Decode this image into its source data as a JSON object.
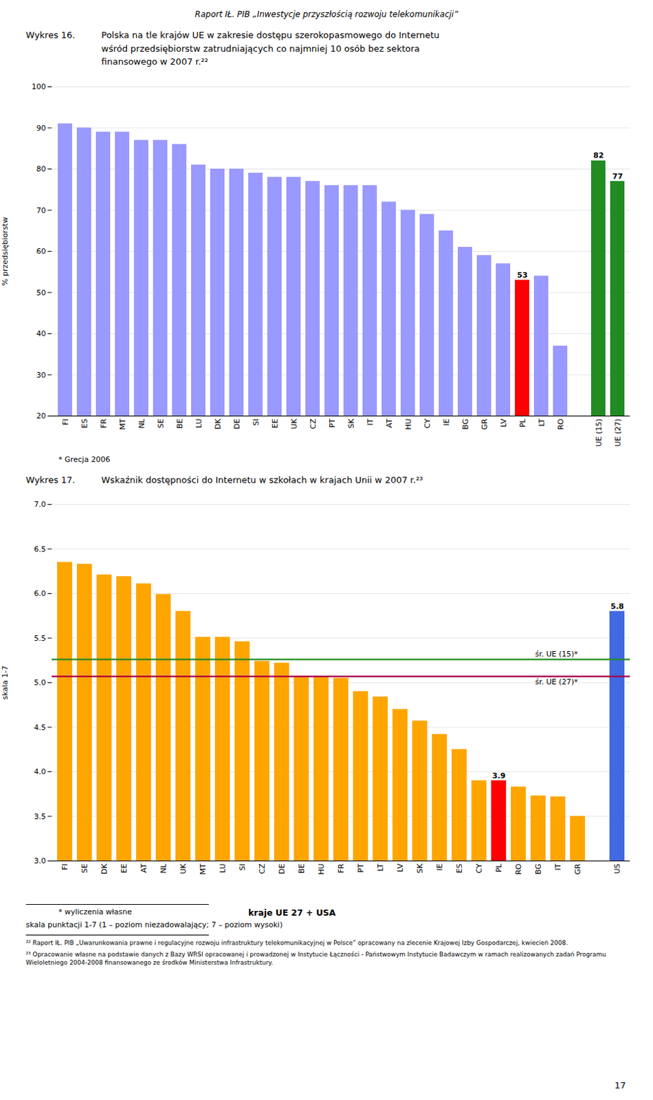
{
  "header": "Raport IŁ. PIB „Inwestycje przyszłością rozwoju telekomunikacji”",
  "chart_data": [
    {
      "type": "bar",
      "title_number": "Wykres 16.",
      "title": "Polska na tle krajów UE w zakresie dostępu szerokopasmowego do Internetu\nwśród przedsiębiorstw zatrudniających co najmniej 10 osób bez sektora\nfinansowego w 2007 r.²²",
      "ylabel": "% przedsiębiorstw",
      "categories": [
        "FI",
        "ES",
        "FR",
        "MT",
        "NL",
        "SE",
        "BE",
        "LU",
        "DK",
        "DE",
        "SI",
        "EE",
        "UK",
        "CZ",
        "PT",
        "SK",
        "IT",
        "AT",
        "HU",
        "CY",
        "IE",
        "BG",
        "GR",
        "LV",
        "PL",
        "LT",
        "RO",
        "UE (15)",
        "UE (27)"
      ],
      "values": [
        91,
        90,
        89,
        89,
        87,
        87,
        86,
        81,
        80,
        80,
        79,
        78,
        78,
        77,
        76,
        76,
        76,
        72,
        70,
        69,
        65,
        61,
        59,
        57,
        53,
        54,
        37,
        82,
        77
      ],
      "colors": [
        "#9999FF",
        "#9999FF",
        "#9999FF",
        "#9999FF",
        "#9999FF",
        "#9999FF",
        "#9999FF",
        "#9999FF",
        "#9999FF",
        "#9999FF",
        "#9999FF",
        "#9999FF",
        "#9999FF",
        "#9999FF",
        "#9999FF",
        "#9999FF",
        "#9999FF",
        "#9999FF",
        "#9999FF",
        "#9999FF",
        "#9999FF",
        "#9999FF",
        "#9999FF",
        "#9999FF",
        "#FF0000",
        "#9999FF",
        "#9999FF",
        "#228B22",
        "#228B22"
      ],
      "ylim": [
        20,
        100
      ],
      "yticks": [
        20,
        30,
        40,
        50,
        60,
        70,
        80,
        90,
        100
      ],
      "grid": true,
      "annotations": [
        {
          "category": "PL",
          "value": 53
        },
        {
          "category": "UE (15)",
          "value": 82
        },
        {
          "category": "UE (27)",
          "value": 77
        }
      ],
      "footnotes": [
        "* Grecja 2006"
      ]
    },
    {
      "type": "bar",
      "title_number": "Wykres 17.",
      "title": "Wskaźnik dostępności do Internetu w szkołach w krajach Unii w 2007 r.²³",
      "ylabel": "skala 1-7",
      "categories": [
        "FI",
        "SE",
        "DK",
        "EE",
        "AT",
        "NL",
        "UK",
        "MT",
        "LU",
        "SI",
        "CZ",
        "DE",
        "BE",
        "HU",
        "FR",
        "PT",
        "LT",
        "LV",
        "SK",
        "IE",
        "ES",
        "CY",
        "PL",
        "RO",
        "BG",
        "IT",
        "GR",
        "US"
      ],
      "values": [
        6.35,
        6.33,
        6.21,
        6.19,
        6.11,
        5.99,
        5.8,
        5.51,
        5.51,
        5.46,
        5.24,
        5.22,
        5.07,
        5.07,
        5.05,
        4.9,
        4.84,
        4.7,
        4.57,
        4.42,
        4.25,
        3.9,
        3.9,
        3.83,
        3.73,
        3.72,
        3.5,
        5.8
      ],
      "colors": [
        "#FFA500",
        "#FFA500",
        "#FFA500",
        "#FFA500",
        "#FFA500",
        "#FFA500",
        "#FFA500",
        "#FFA500",
        "#FFA500",
        "#FFA500",
        "#FFA500",
        "#FFA500",
        "#FFA500",
        "#FFA500",
        "#FFA500",
        "#FFA500",
        "#FFA500",
        "#FFA500",
        "#FFA500",
        "#FFA500",
        "#FFA500",
        "#FFA500",
        "#FF0000",
        "#FFA500",
        "#FFA500",
        "#FFA500",
        "#FFA500",
        "#4169E1"
      ],
      "ylim": [
        3,
        7
      ],
      "yticks": [
        {
          "value": 3,
          "label": "3.0"
        },
        3.5,
        {
          "value": 4,
          "label": "4.0"
        },
        4.5,
        {
          "value": 5,
          "label": "5.0"
        },
        5.5,
        {
          "value": 6,
          "label": "6.0"
        },
        6.5,
        {
          "value": 7,
          "label": "7.0"
        }
      ],
      "grid": true,
      "reference_lines": [
        {
          "name": "śr. UE (15)*",
          "value": 5.26,
          "color": "#228B22"
        },
        {
          "name": "śr. UE (27)*",
          "value": 5.07,
          "color": "#AA0044"
        }
      ],
      "annotations": [
        {
          "category": "PL",
          "value": 3.9
        },
        {
          "category": "US",
          "value": 5.8
        }
      ],
      "footnotes": [
        "* wyliczenia własne",
        "kraje UE 27 + USA",
        "skala punktacji 1-7 (1 – poziom niezadowalający; 7 – poziom wysoki)"
      ]
    }
  ],
  "footnotes": [
    "²² Raport IŁ. PIB „Uwarunkowania prawne i regulacyjne rozwoju infrastruktury telekomunikacyjnej w Polsce” opracowany na zlecenie Krajowej Izby Gospodarczej, kwiecień 2008.",
    "²³ Opracowanie własne na podstawie danych z Bazy WRSI opracowanej i prowadzonej w Instytucie Łączności - Państwowym Instytucie Badawczym w ramach realizowanych zadań Programu Wieloletniego 2004-2008 finansowanego ze środków Ministerstwa Infrastruktury."
  ],
  "page_number": "17"
}
